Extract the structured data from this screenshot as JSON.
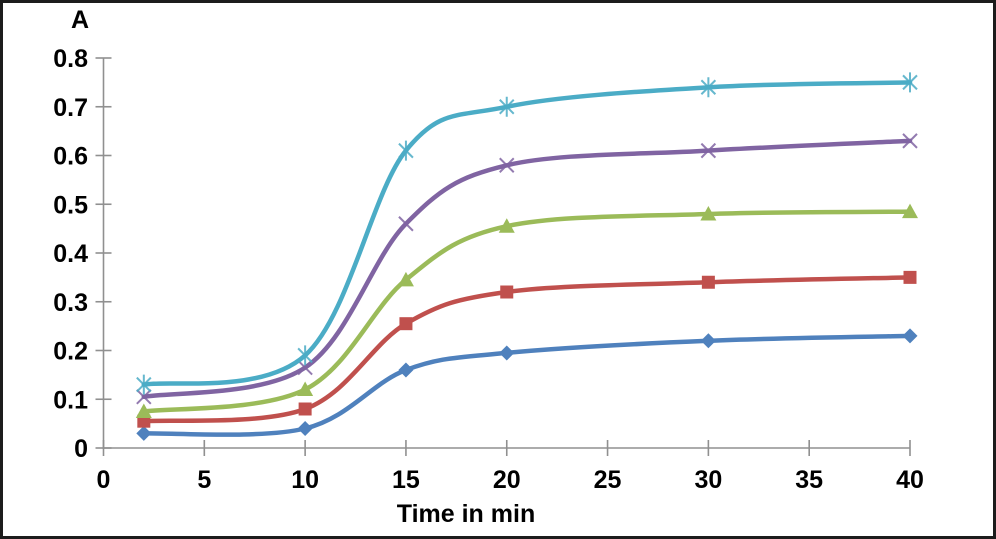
{
  "chart_data": {
    "type": "line",
    "title": "",
    "xlabel": "Time in min",
    "ylabel": "A",
    "x": [
      2,
      10,
      15,
      20,
      30,
      40
    ],
    "xlim": [
      0,
      40
    ],
    "ylim": [
      0,
      0.8
    ],
    "x_ticks": [
      0,
      5,
      10,
      15,
      20,
      25,
      30,
      35,
      40
    ],
    "x_tick_labels": [
      "0",
      "5",
      "10",
      "15",
      "20",
      "25",
      "30",
      "35",
      "40"
    ],
    "y_ticks": [
      0,
      0.1,
      0.2,
      0.3,
      0.4,
      0.5,
      0.6,
      0.7,
      0.8
    ],
    "y_tick_labels": [
      "0",
      "0.1",
      "0.2",
      "0.3",
      "0.4",
      "0.5",
      "0.6",
      "0.7",
      "0.8"
    ],
    "grid": false,
    "legend": false,
    "smooth": true,
    "series": [
      {
        "name": "series-1-blue-diamond",
        "marker": "diamond",
        "color": "#4F81BD",
        "values": [
          0.03,
          0.04,
          0.16,
          0.195,
          0.22,
          0.23
        ]
      },
      {
        "name": "series-2-red-square",
        "marker": "square",
        "color": "#C0504D",
        "values": [
          0.055,
          0.08,
          0.255,
          0.32,
          0.34,
          0.35
        ]
      },
      {
        "name": "series-3-green-triangle",
        "marker": "triangle",
        "color": "#9BBB59",
        "values": [
          0.075,
          0.12,
          0.345,
          0.455,
          0.48,
          0.485
        ]
      },
      {
        "name": "series-4-purple-x",
        "marker": "x",
        "color": "#8064A2",
        "values": [
          0.105,
          0.165,
          0.46,
          0.58,
          0.61,
          0.63
        ]
      },
      {
        "name": "series-5-teal-asterisk",
        "marker": "asterisk",
        "color": "#4BACC6",
        "values": [
          0.13,
          0.19,
          0.61,
          0.7,
          0.74,
          0.75
        ]
      }
    ],
    "colors": {
      "axis": "#909090",
      "text": "#000000",
      "background": "#FFFFFF",
      "frame_border": "#1C1C1C"
    }
  }
}
